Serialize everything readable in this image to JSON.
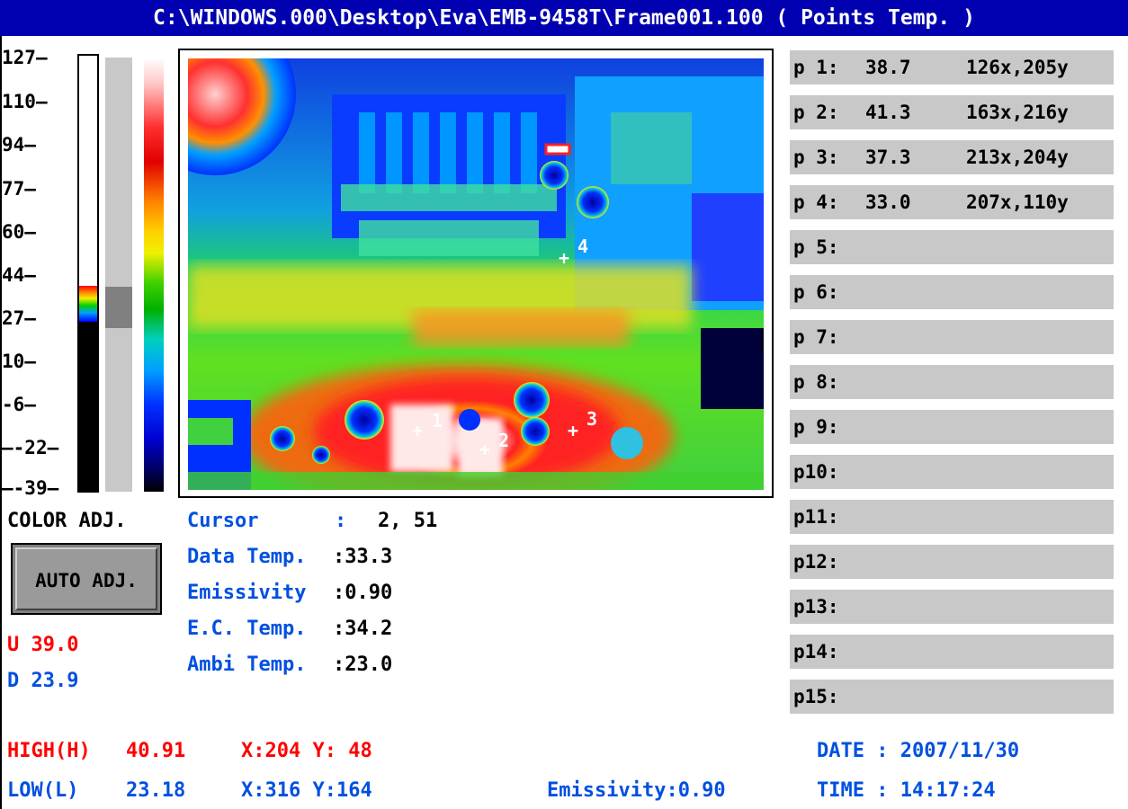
{
  "title": "C:\\WINDOWS.000\\Desktop\\Eva\\EMB-9458T\\Frame001.100 ( Points Temp. )",
  "scale": {
    "ticks": [
      "127",
      "110",
      "94",
      "77",
      "60",
      "44",
      "27",
      "10",
      "-6",
      "-22",
      "-39"
    ]
  },
  "color_adj_label": "COLOR ADJ.",
  "auto_adj_label": "AUTO ADJ.",
  "upper": "U 39.0",
  "lower": "D 23.9",
  "readout": {
    "cursor_label": "Cursor",
    "cursor_sep": ":",
    "cursor_value": "2, 51",
    "data_temp_label": "Data Temp.",
    "data_temp_value": ":33.3",
    "emissivity_label": "Emissivity",
    "emissivity_value": ":0.90",
    "ec_temp_label": "E.C. Temp.",
    "ec_temp_value": ":34.2",
    "ambi_temp_label": "Ambi Temp.",
    "ambi_temp_value": ":23.0"
  },
  "points": [
    {
      "label": "p 1:",
      "temp": "38.7",
      "coords": "126x,205y"
    },
    {
      "label": "p 2:",
      "temp": "41.3",
      "coords": "163x,216y"
    },
    {
      "label": "p 3:",
      "temp": "37.3",
      "coords": "213x,204y"
    },
    {
      "label": "p 4:",
      "temp": "33.0",
      "coords": "207x,110y"
    },
    {
      "label": "p 5:",
      "temp": "",
      "coords": ""
    },
    {
      "label": "p 6:",
      "temp": "",
      "coords": ""
    },
    {
      "label": "p 7:",
      "temp": "",
      "coords": ""
    },
    {
      "label": "p 8:",
      "temp": "",
      "coords": ""
    },
    {
      "label": "p 9:",
      "temp": "",
      "coords": ""
    },
    {
      "label": "p10:",
      "temp": "",
      "coords": ""
    },
    {
      "label": "p11:",
      "temp": "",
      "coords": ""
    },
    {
      "label": "p12:",
      "temp": "",
      "coords": ""
    },
    {
      "label": "p13:",
      "temp": "",
      "coords": ""
    },
    {
      "label": "p14:",
      "temp": "",
      "coords": ""
    },
    {
      "label": "p15:",
      "temp": "",
      "coords": ""
    }
  ],
  "markers": [
    "1",
    "2",
    "3",
    "4"
  ],
  "footer": {
    "high_label": "HIGH(H)",
    "high_value": "40.91",
    "high_xy": "X:204 Y: 48",
    "low_label": "LOW(L)",
    "low_value": "23.18",
    "low_xy": "X:316 Y:164",
    "emissivity": "Emissivity:0.90",
    "date": "DATE : 2007/11/30",
    "time": "TIME : 14:17:24"
  },
  "colors": {
    "title_bg": "#0000b0",
    "label_blue": "#0050e0",
    "label_red": "#ff0000",
    "row_gray": "#c8c8c8"
  }
}
